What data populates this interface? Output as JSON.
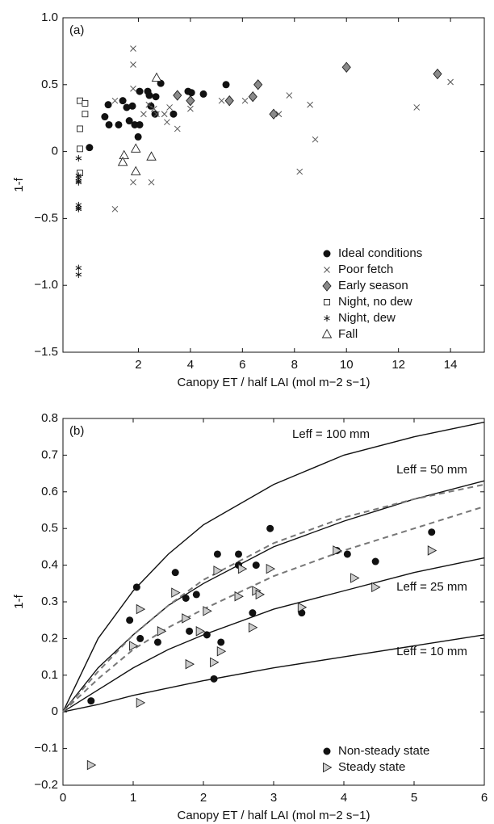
{
  "chart_data": [
    {
      "type": "scatter",
      "panel_label": "(a)",
      "x_label": "Canopy ET / half LAI (mol m−2 s−1)",
      "y_label": "1-f",
      "xlim": [
        -0.9,
        15.3
      ],
      "ylim": [
        -1.5,
        1.0
      ],
      "xticks": [
        2,
        4,
        6,
        8,
        10,
        12,
        14
      ],
      "yticks": [
        {
          "value": -1.5,
          "label": "−1.5"
        },
        {
          "value": -1.0,
          "label": "−1.0"
        },
        {
          "value": -0.5,
          "label": "−0.5"
        },
        0,
        0.5,
        {
          "value": 1.0,
          "label": "1.0"
        }
      ],
      "legend": "lower right",
      "series": [
        {
          "name": "Ideal conditions",
          "marker": "circle",
          "color": "#111111",
          "x": [
            0.12,
            0.71,
            0.84,
            0.87,
            1.24,
            1.4,
            1.55,
            1.65,
            1.77,
            1.86,
            1.99,
            2.05,
            2.05,
            2.36,
            2.42,
            2.48,
            2.64,
            2.67,
            2.86,
            3.35,
            3.91,
            4.04,
            4.5,
            5.37
          ],
          "values": [
            0.03,
            0.26,
            0.35,
            0.2,
            0.2,
            0.38,
            0.33,
            0.23,
            0.34,
            0.2,
            0.11,
            0.45,
            0.2,
            0.45,
            0.42,
            0.34,
            0.28,
            0.41,
            0.51,
            0.28,
            0.45,
            0.44,
            0.43,
            0.5
          ]
        },
        {
          "name": "Poor fetch",
          "marker": "x",
          "color": "#555555",
          "x": [
            1.8,
            1.8,
            1.8,
            1.1,
            1.1,
            1.8,
            2.5,
            2.2,
            2.4,
            2.6,
            2.7,
            3.0,
            3.1,
            3.2,
            3.5,
            4.0,
            5.2,
            6.1,
            7.4,
            7.8,
            8.6,
            8.2,
            8.8,
            12.7,
            14.0
          ],
          "values": [
            0.77,
            0.65,
            0.47,
            0.38,
            -0.43,
            -0.23,
            -0.23,
            0.28,
            0.35,
            0.32,
            0.28,
            0.28,
            0.22,
            0.33,
            0.17,
            0.32,
            0.38,
            0.38,
            0.28,
            0.42,
            0.35,
            -0.15,
            0.09,
            0.33,
            0.52
          ]
        },
        {
          "name": "Early season",
          "marker": "diamond",
          "color": "#8a8a8a",
          "x": [
            3.5,
            4.0,
            5.5,
            6.4,
            6.6,
            7.2,
            10.0,
            13.5
          ],
          "values": [
            0.42,
            0.38,
            0.38,
            0.41,
            0.5,
            0.28,
            0.63,
            0.58
          ]
        },
        {
          "name": "Night, no dew",
          "marker": "square",
          "color": "#ffffff",
          "x": [
            -0.25,
            -0.05,
            -0.05,
            -0.25,
            -0.25,
            -0.25
          ],
          "values": [
            0.38,
            0.36,
            0.28,
            0.17,
            0.02,
            -0.16
          ]
        },
        {
          "name": "Night, dew",
          "marker": "asterisk",
          "color": "#111111",
          "x": [
            -0.3,
            -0.3,
            -0.3,
            -0.3,
            -0.3,
            -0.3,
            -0.3,
            -0.3,
            -0.3,
            -0.3
          ],
          "values": [
            -0.05,
            -0.18,
            -0.2,
            -0.22,
            -0.23,
            -0.4,
            -0.42,
            -0.43,
            -0.87,
            -0.92
          ]
        },
        {
          "name": "Fall",
          "marker": "triangle",
          "color": "#ffffff",
          "x": [
            2.7,
            1.45,
            1.4,
            1.9,
            2.5,
            1.9
          ],
          "values": [
            0.55,
            -0.03,
            -0.08,
            -0.15,
            -0.04,
            0.02
          ]
        }
      ]
    },
    {
      "type": "scatter",
      "panel_label": "(b)",
      "x_label": "Canopy ET / half LAI (mol m−2 s−1)",
      "y_label": "1-f",
      "xlim": [
        0,
        6
      ],
      "ylim": [
        -0.2,
        0.8
      ],
      "xticks": [
        0,
        1,
        2,
        3,
        4,
        5,
        6
      ],
      "yticks": [
        {
          "value": -0.2,
          "label": "−0.2"
        },
        {
          "value": -0.1,
          "label": "−0.1"
        },
        0,
        0.1,
        0.2,
        0.3,
        0.4,
        0.5,
        0.6,
        0.7,
        0.8
      ],
      "legend": "lower right",
      "curves": {
        "x": [
          0,
          0.5,
          1,
          1.5,
          2,
          3,
          4,
          5,
          6
        ],
        "series": [
          {
            "label": "Leff = 100 mm",
            "color": "#111111",
            "dash": false,
            "values": [
              0,
              0.2,
              0.33,
              0.43,
              0.51,
              0.62,
              0.7,
              0.75,
              0.79
            ]
          },
          {
            "label": "Leff = 50 mm",
            "color": "#111111",
            "dash": false,
            "values": [
              0,
              0.12,
              0.21,
              0.29,
              0.35,
              0.45,
              0.52,
              0.58,
              0.63
            ]
          },
          {
            "label": "Leff = 25 mm",
            "color": "#111111",
            "dash": false,
            "values": [
              0,
              0.06,
              0.12,
              0.17,
              0.21,
              0.28,
              0.33,
              0.38,
              0.42
            ]
          },
          {
            "label": "Leff = 10 mm",
            "color": "#111111",
            "dash": false,
            "values": [
              0,
              0.02,
              0.045,
              0.065,
              0.085,
              0.12,
              0.15,
              0.18,
              0.21
            ]
          },
          {
            "color": "#777777",
            "dash": true,
            "values": [
              0,
              0.11,
              0.21,
              0.29,
              0.36,
              0.46,
              0.53,
              0.58,
              0.62
            ]
          },
          {
            "color": "#777777",
            "dash": true,
            "values": [
              0,
              0.09,
              0.17,
              0.23,
              0.28,
              0.37,
              0.44,
              0.5,
              0.56
            ]
          }
        ]
      },
      "series": [
        {
          "name": "Non-steady state",
          "marker": "circle",
          "color": "#111111",
          "x": [
            0.4,
            0.95,
            1.05,
            1.1,
            1.35,
            1.6,
            1.75,
            1.8,
            1.9,
            2.05,
            2.15,
            2.2,
            2.25,
            2.5,
            2.5,
            2.7,
            2.75,
            2.95,
            3.4,
            3.9,
            4.05,
            4.45,
            5.25
          ],
          "values": [
            0.03,
            0.25,
            0.34,
            0.2,
            0.19,
            0.38,
            0.31,
            0.22,
            0.32,
            0.21,
            0.09,
            0.43,
            0.19,
            0.43,
            0.4,
            0.27,
            0.4,
            0.5,
            0.27,
            0.44,
            0.43,
            0.41,
            0.49
          ]
        },
        {
          "name": "Steady state",
          "marker": "triangle-right",
          "color": "#cccccc",
          "x": [
            0.4,
            1.0,
            1.1,
            1.1,
            1.4,
            1.6,
            1.75,
            1.8,
            1.95,
            2.05,
            2.15,
            2.2,
            2.25,
            2.5,
            2.55,
            2.7,
            2.75,
            2.8,
            2.95,
            3.4,
            3.9,
            4.15,
            4.45,
            5.25
          ],
          "values": [
            -0.145,
            0.18,
            0.28,
            0.025,
            0.22,
            0.325,
            0.255,
            0.13,
            0.22,
            0.275,
            0.135,
            0.385,
            0.165,
            0.315,
            0.39,
            0.23,
            0.33,
            0.32,
            0.39,
            0.285,
            0.44,
            0.365,
            0.34,
            0.44
          ]
        }
      ]
    }
  ]
}
